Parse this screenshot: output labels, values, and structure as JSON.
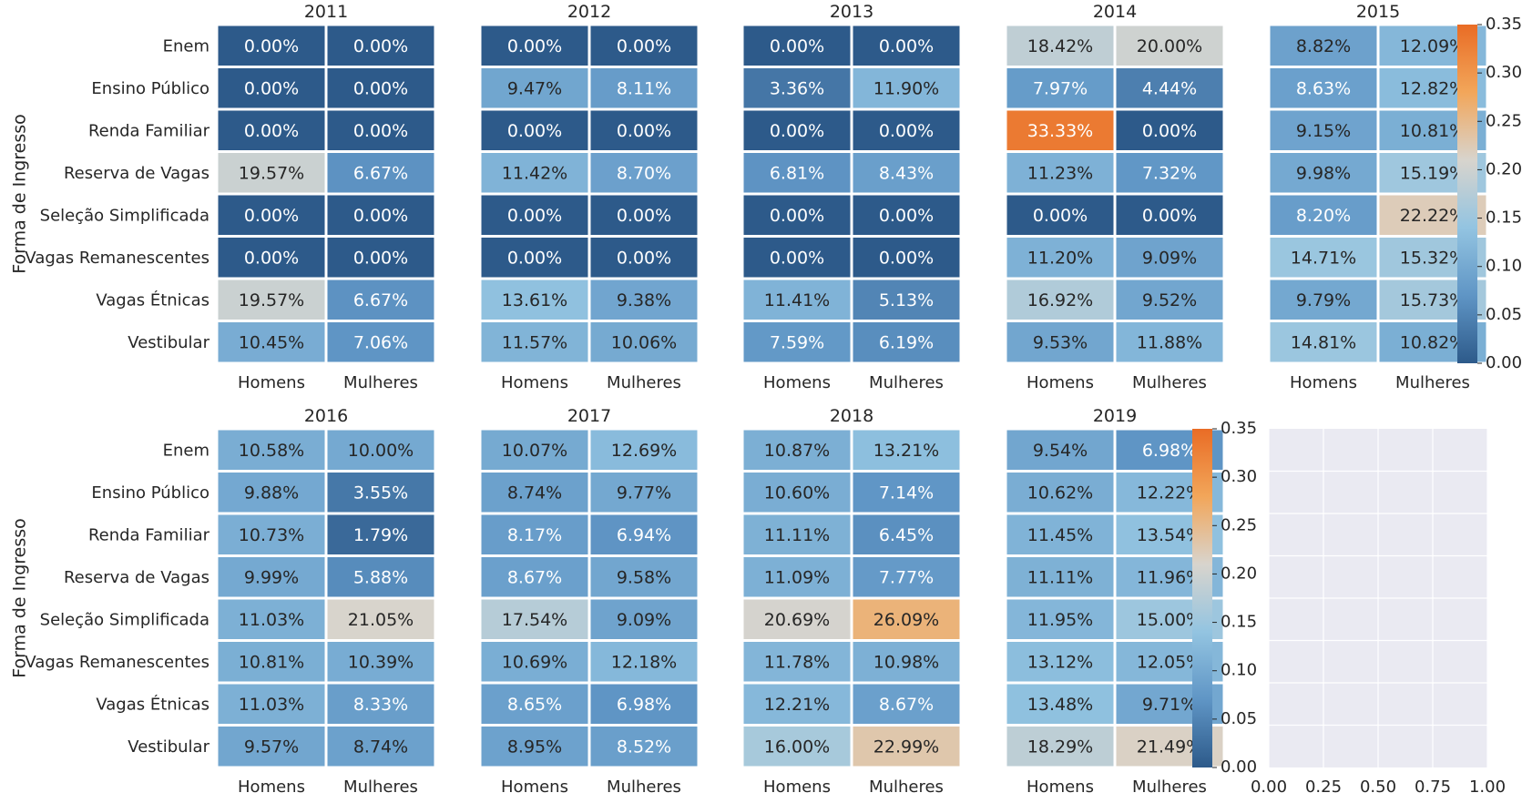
{
  "chart_data": {
    "type": "heatmap",
    "ylabel": "Forma de Ingresso",
    "rows": [
      "Enem",
      "Ensino Público",
      "Renda Familiar",
      "Reserva de Vagas",
      "Seleção Simplificada",
      "Vagas Remanescentes",
      "Vagas Étnicas",
      "Vestibular"
    ],
    "columns": [
      "Homens",
      "Mulheres"
    ],
    "value_range": [
      0.0,
      0.35
    ],
    "colorbar_ticks": [
      "0.00",
      "0.05",
      "0.10",
      "0.15",
      "0.20",
      "0.25",
      "0.30",
      "0.35"
    ],
    "colormap": [
      "#2d5a8a",
      "#5f95c5",
      "#93c4e1",
      "#d8d4cd",
      "#f2a65a",
      "#e96c25"
    ],
    "grid": false,
    "panels": [
      {
        "year": "2011",
        "values": [
          [
            0.0,
            0.0
          ],
          [
            0.0,
            0.0
          ],
          [
            0.0,
            0.0
          ],
          [
            0.1957,
            0.0667
          ],
          [
            0.0,
            0.0
          ],
          [
            0.0,
            0.0
          ],
          [
            0.1957,
            0.0667
          ],
          [
            0.1045,
            0.0706
          ]
        ],
        "labels": [
          [
            "0.00%",
            "0.00%"
          ],
          [
            "0.00%",
            "0.00%"
          ],
          [
            "0.00%",
            "0.00%"
          ],
          [
            "19.57%",
            "6.67%"
          ],
          [
            "0.00%",
            "0.00%"
          ],
          [
            "0.00%",
            "0.00%"
          ],
          [
            "19.57%",
            "6.67%"
          ],
          [
            "10.45%",
            "7.06%"
          ]
        ]
      },
      {
        "year": "2012",
        "values": [
          [
            0.0,
            0.0
          ],
          [
            0.0947,
            0.0811
          ],
          [
            0.0,
            0.0
          ],
          [
            0.1142,
            0.087
          ],
          [
            0.0,
            0.0
          ],
          [
            0.0,
            0.0
          ],
          [
            0.1361,
            0.0938
          ],
          [
            0.1157,
            0.1006
          ]
        ],
        "labels": [
          [
            "0.00%",
            "0.00%"
          ],
          [
            "9.47%",
            "8.11%"
          ],
          [
            "0.00%",
            "0.00%"
          ],
          [
            "11.42%",
            "8.70%"
          ],
          [
            "0.00%",
            "0.00%"
          ],
          [
            "0.00%",
            "0.00%"
          ],
          [
            "13.61%",
            "9.38%"
          ],
          [
            "11.57%",
            "10.06%"
          ]
        ]
      },
      {
        "year": "2013",
        "values": [
          [
            0.0,
            0.0
          ],
          [
            0.0336,
            0.119
          ],
          [
            0.0,
            0.0
          ],
          [
            0.0681,
            0.0843
          ],
          [
            0.0,
            0.0
          ],
          [
            0.0,
            0.0
          ],
          [
            0.1141,
            0.0513
          ],
          [
            0.0759,
            0.0619
          ]
        ],
        "labels": [
          [
            "0.00%",
            "0.00%"
          ],
          [
            "3.36%",
            "11.90%"
          ],
          [
            "0.00%",
            "0.00%"
          ],
          [
            "6.81%",
            "8.43%"
          ],
          [
            "0.00%",
            "0.00%"
          ],
          [
            "0.00%",
            "0.00%"
          ],
          [
            "11.41%",
            "5.13%"
          ],
          [
            "7.59%",
            "6.19%"
          ]
        ]
      },
      {
        "year": "2014",
        "values": [
          [
            0.1842,
            0.2
          ],
          [
            0.0797,
            0.0444
          ],
          [
            0.3333,
            0.0
          ],
          [
            0.1123,
            0.0732
          ],
          [
            0.0,
            0.0
          ],
          [
            0.112,
            0.0909
          ],
          [
            0.1692,
            0.0952
          ],
          [
            0.0953,
            0.1188
          ]
        ],
        "labels": [
          [
            "18.42%",
            "20.00%"
          ],
          [
            "7.97%",
            "4.44%"
          ],
          [
            "33.33%",
            "0.00%"
          ],
          [
            "11.23%",
            "7.32%"
          ],
          [
            "0.00%",
            "0.00%"
          ],
          [
            "11.20%",
            "9.09%"
          ],
          [
            "16.92%",
            "9.52%"
          ],
          [
            "9.53%",
            "11.88%"
          ]
        ]
      },
      {
        "year": "2015",
        "values": [
          [
            0.0882,
            0.1209
          ],
          [
            0.0863,
            0.1282
          ],
          [
            0.0915,
            0.1081
          ],
          [
            0.0998,
            0.1519
          ],
          [
            0.082,
            0.2222
          ],
          [
            0.1471,
            0.1532
          ],
          [
            0.0979,
            0.1573
          ],
          [
            0.1481,
            0.1082
          ]
        ],
        "labels": [
          [
            "8.82%",
            "12.09%"
          ],
          [
            "8.63%",
            "12.82%"
          ],
          [
            "9.15%",
            "10.81%"
          ],
          [
            "9.98%",
            "15.19%"
          ],
          [
            "8.20%",
            "22.22%"
          ],
          [
            "14.71%",
            "15.32%"
          ],
          [
            "9.79%",
            "15.73%"
          ],
          [
            "14.81%",
            "10.82%"
          ]
        ]
      },
      {
        "year": "2016",
        "values": [
          [
            0.1058,
            0.1
          ],
          [
            0.0988,
            0.0355
          ],
          [
            0.1073,
            0.0179
          ],
          [
            0.0999,
            0.0588
          ],
          [
            0.1103,
            0.2105
          ],
          [
            0.1081,
            0.1039
          ],
          [
            0.1103,
            0.0833
          ],
          [
            0.0957,
            0.0874
          ]
        ],
        "labels": [
          [
            "10.58%",
            "10.00%"
          ],
          [
            "9.88%",
            "3.55%"
          ],
          [
            "10.73%",
            "1.79%"
          ],
          [
            "9.99%",
            "5.88%"
          ],
          [
            "11.03%",
            "21.05%"
          ],
          [
            "10.81%",
            "10.39%"
          ],
          [
            "11.03%",
            "8.33%"
          ],
          [
            "9.57%",
            "8.74%"
          ]
        ]
      },
      {
        "year": "2017",
        "values": [
          [
            0.1007,
            0.1269
          ],
          [
            0.0874,
            0.0977
          ],
          [
            0.0817,
            0.0694
          ],
          [
            0.0867,
            0.0958
          ],
          [
            0.1754,
            0.0909
          ],
          [
            0.1069,
            0.1218
          ],
          [
            0.0865,
            0.0698
          ],
          [
            0.0895,
            0.0852
          ]
        ],
        "labels": [
          [
            "10.07%",
            "12.69%"
          ],
          [
            "8.74%",
            "9.77%"
          ],
          [
            "8.17%",
            "6.94%"
          ],
          [
            "8.67%",
            "9.58%"
          ],
          [
            "17.54%",
            "9.09%"
          ],
          [
            "10.69%",
            "12.18%"
          ],
          [
            "8.65%",
            "6.98%"
          ],
          [
            "8.95%",
            "8.52%"
          ]
        ]
      },
      {
        "year": "2018",
        "values": [
          [
            0.1087,
            0.1321
          ],
          [
            0.106,
            0.0714
          ],
          [
            0.1111,
            0.0645
          ],
          [
            0.1109,
            0.0777
          ],
          [
            0.2069,
            0.2609
          ],
          [
            0.1178,
            0.1098
          ],
          [
            0.1221,
            0.0867
          ],
          [
            0.16,
            0.2299
          ]
        ],
        "labels": [
          [
            "10.87%",
            "13.21%"
          ],
          [
            "10.60%",
            "7.14%"
          ],
          [
            "11.11%",
            "6.45%"
          ],
          [
            "11.09%",
            "7.77%"
          ],
          [
            "20.69%",
            "26.09%"
          ],
          [
            "11.78%",
            "10.98%"
          ],
          [
            "12.21%",
            "8.67%"
          ],
          [
            "16.00%",
            "22.99%"
          ]
        ]
      },
      {
        "year": "2019",
        "values": [
          [
            0.0954,
            0.0698
          ],
          [
            0.1062,
            0.1222
          ],
          [
            0.1145,
            0.1354
          ],
          [
            0.1111,
            0.1196
          ],
          [
            0.1195,
            0.15
          ],
          [
            0.1312,
            0.1205
          ],
          [
            0.1348,
            0.0971
          ],
          [
            0.1829,
            0.2149
          ]
        ],
        "labels": [
          [
            "9.54%",
            "6.98%"
          ],
          [
            "10.62%",
            "12.22%"
          ],
          [
            "11.45%",
            "13.54%"
          ],
          [
            "11.11%",
            "11.96%"
          ],
          [
            "11.95%",
            "15.00%"
          ],
          [
            "13.12%",
            "12.05%"
          ],
          [
            "13.48%",
            "9.71%"
          ],
          [
            "18.29%",
            "21.49%"
          ]
        ]
      }
    ],
    "empty_panel": {
      "xlim": [
        0.0,
        1.0
      ],
      "xticks": [
        "0.00",
        "0.25",
        "0.50",
        "0.75",
        "1.00"
      ],
      "grid": true
    }
  }
}
